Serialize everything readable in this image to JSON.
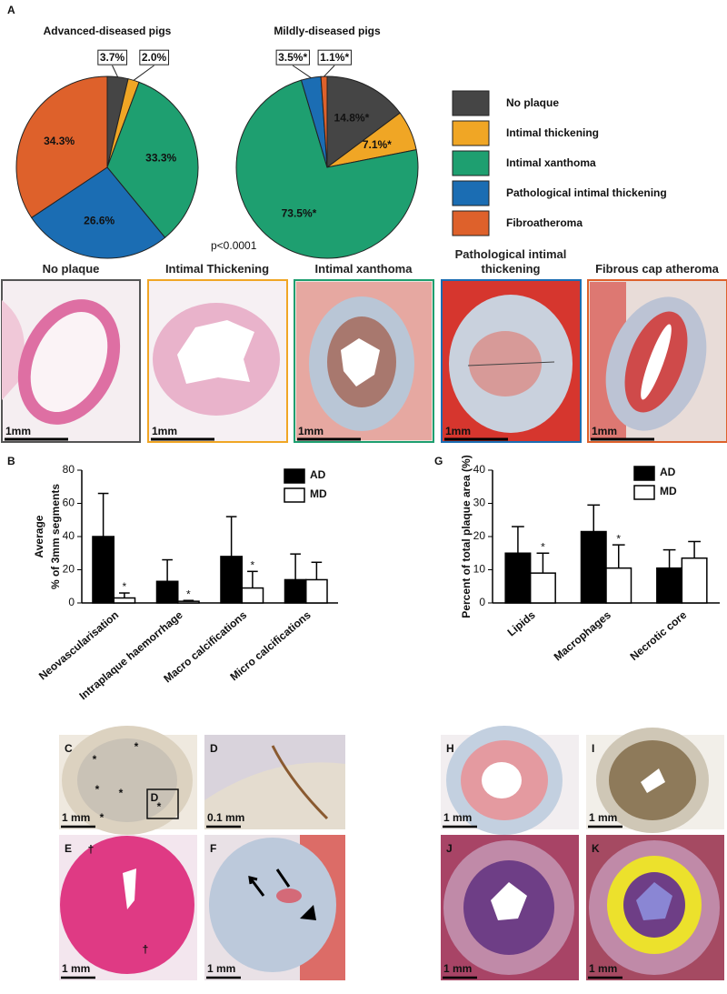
{
  "panel_labels": [
    "A",
    "B",
    "G"
  ],
  "chart_data": [
    {
      "type": "pie",
      "title": "Advanced-diseased pigs",
      "categories": [
        "No plaque",
        "Intimal thickening",
        "Intimal xanthoma",
        "Pathological intimal thickening",
        "Fibroatheroma"
      ],
      "values": [
        3.7,
        2.0,
        33.3,
        26.6,
        34.3
      ],
      "value_labels": [
        "3.7%",
        "2.0%",
        "33.3%",
        "26.6%",
        "34.3%"
      ],
      "colors": [
        "#454545",
        "#f0a625",
        "#1e9f70",
        "#1b6db3",
        "#de612b"
      ]
    },
    {
      "type": "pie",
      "title": "Mildly-diseased pigs",
      "categories": [
        "No plaque",
        "Intimal thickening",
        "Intimal xanthoma",
        "Pathological intimal thickening",
        "Fibroatheroma"
      ],
      "values": [
        14.8,
        7.1,
        73.5,
        3.5,
        1.1
      ],
      "value_labels": [
        "14.8%*",
        "7.1%*",
        "73.5%*",
        "3.5%*",
        "1.1%*"
      ],
      "colors": [
        "#454545",
        "#f0a625",
        "#1e9f70",
        "#1b6db3",
        "#de612b"
      ],
      "annotation": "p<0.0001"
    },
    {
      "type": "bar",
      "ylabel": [
        "Average",
        "% of 3mm segments"
      ],
      "categories": [
        "Neovascularisation",
        "Intraplaque haemorrhage",
        "Macro calcifications",
        "Micro calcifications"
      ],
      "series": [
        {
          "name": "AD",
          "color": "#000000",
          "values": [
            40,
            13,
            28,
            14
          ],
          "errors": [
            26,
            13,
            24,
            15.5
          ]
        },
        {
          "name": "MD",
          "color": "#ffffff",
          "values": [
            3,
            1,
            9,
            14
          ],
          "errors": [
            3,
            0.5,
            10,
            10.5
          ]
        }
      ],
      "annotations": [
        "*",
        "*",
        "*"
      ],
      "ylim": [
        0,
        80
      ],
      "yticks": [
        0,
        20,
        40,
        60,
        80
      ]
    },
    {
      "type": "bar",
      "ylabel": [
        "Percent of total plaque area (%)"
      ],
      "categories": [
        "Lipids",
        "Macrophages",
        "Necrotic core"
      ],
      "series": [
        {
          "name": "AD",
          "color": "#000000",
          "values": [
            15,
            21.5,
            10.5
          ],
          "errors": [
            8,
            8,
            5.5
          ]
        },
        {
          "name": "MD",
          "color": "#ffffff",
          "values": [
            9,
            10.5,
            13.5
          ],
          "errors": [
            6,
            7,
            5
          ]
        }
      ],
      "annotations": [
        "*",
        "*"
      ],
      "ylim": [
        0,
        40
      ],
      "yticks": [
        0,
        10,
        20,
        30,
        40
      ]
    }
  ],
  "histology": {
    "captions": [
      "No plaque",
      "Intimal Thickening",
      "Intimal xanthoma",
      "Pathological intimal thickening",
      "Fibrous cap atheroma"
    ],
    "scale_labels": [
      "1mm",
      "1mm",
      "1mm",
      "1mm",
      "1mm"
    ]
  },
  "micrographs": [
    {
      "label": "C",
      "scale": "1 mm",
      "marks": [
        "*",
        "*",
        "*",
        "*",
        "*",
        "*",
        "D"
      ]
    },
    {
      "label": "D",
      "scale": "0.1 mm",
      "marks": []
    },
    {
      "label": "E",
      "scale": "1 mm",
      "marks": [
        "†",
        "†"
      ]
    },
    {
      "label": "F",
      "scale": "1 mm",
      "marks": []
    },
    {
      "label": "H",
      "scale": "1 mm",
      "marks": []
    },
    {
      "label": "I",
      "scale": "1 mm",
      "marks": []
    },
    {
      "label": "J",
      "scale": "1 mm",
      "marks": []
    },
    {
      "label": "K",
      "scale": "1 mm",
      "marks": []
    }
  ]
}
